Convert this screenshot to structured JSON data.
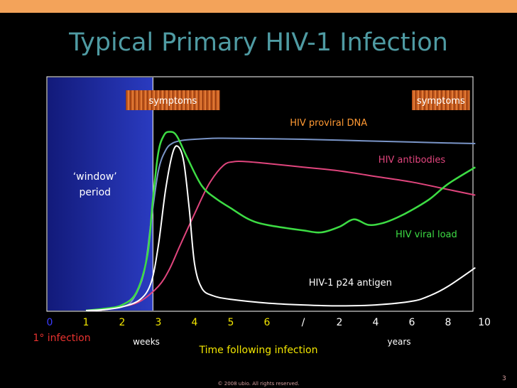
{
  "slide": {
    "title": "Typical Primary HIV-1 Infection",
    "copyright": "© 2008 ubio. All rights reserved.",
    "page_number": "3"
  },
  "chart_data": {
    "type": "line",
    "title": "Typical Primary HIV-1 Infection",
    "xlabel": "Time following infection",
    "x_unit_labels": {
      "weeks": "weeks",
      "years": "years"
    },
    "x_ticks": [
      "0",
      "1",
      "2",
      "3",
      "4",
      "5",
      "6",
      "/",
      "2",
      "4",
      "6",
      "8",
      "10"
    ],
    "x_tick_colors": [
      "#3b3bff",
      "#f2e600",
      "#f2e600",
      "#f2e600",
      "#f2e600",
      "#f2e600",
      "#f2e600",
      "#ffffff",
      "#ffffff",
      "#ffffff",
      "#ffffff",
      "#ffffff",
      "#ffffff"
    ],
    "xlim": [
      0,
      12
    ],
    "ylim": [
      0,
      1
    ],
    "infection_label": "1° infection",
    "window_label": [
      "‘window’",
      "period"
    ],
    "window_range": [
      0,
      2.85
    ],
    "symptom_bands": [
      {
        "label": "symptoms",
        "x_range": [
          2.1,
          4.7
        ]
      },
      {
        "label": "symptoms",
        "x_range": [
          10.0,
          11.6
        ]
      }
    ],
    "series": [
      {
        "name": "HIV proviral DNA",
        "color": "#7a95c8",
        "label_color": "#ff9933",
        "x": [
          1.0,
          1.5,
          2.0,
          2.3,
          2.6,
          2.8,
          3.0,
          3.2,
          3.4,
          3.7,
          4.0,
          4.5,
          5.0,
          6.0,
          7.0,
          8.0,
          9.0,
          10.0,
          11.0,
          11.75
        ],
        "y": [
          0.0,
          0.005,
          0.02,
          0.06,
          0.2,
          0.48,
          0.75,
          0.86,
          0.9,
          0.915,
          0.92,
          0.925,
          0.925,
          0.923,
          0.92,
          0.915,
          0.91,
          0.905,
          0.9,
          0.897
        ]
      },
      {
        "name": "HIV antibodies",
        "color": "#e0457d",
        "label_color": "#e0457d",
        "x": [
          1.0,
          1.5,
          2.0,
          2.5,
          3.0,
          3.3,
          3.6,
          4.0,
          4.4,
          4.8,
          5.1,
          5.4,
          6.0,
          7.0,
          8.0,
          9.0,
          10.0,
          11.0,
          11.75
        ],
        "y": [
          0.0,
          0.005,
          0.02,
          0.05,
          0.13,
          0.22,
          0.35,
          0.52,
          0.68,
          0.78,
          0.8,
          0.8,
          0.79,
          0.77,
          0.75,
          0.72,
          0.69,
          0.65,
          0.62
        ]
      },
      {
        "name": "HIV viral load",
        "color": "#3ddc44",
        "label_color": "#3ddc44",
        "x": [
          1.0,
          1.5,
          2.0,
          2.4,
          2.7,
          2.85,
          3.0,
          3.15,
          3.3,
          3.5,
          3.8,
          4.2,
          4.6,
          5.0,
          5.5,
          6.0,
          7.0,
          7.5,
          8.0,
          8.4,
          8.8,
          9.2,
          9.6,
          10.0,
          10.5,
          11.0,
          11.75
        ],
        "y": [
          0.0,
          0.01,
          0.03,
          0.1,
          0.3,
          0.6,
          0.85,
          0.94,
          0.96,
          0.94,
          0.82,
          0.67,
          0.6,
          0.55,
          0.49,
          0.46,
          0.43,
          0.42,
          0.45,
          0.49,
          0.46,
          0.47,
          0.5,
          0.54,
          0.6,
          0.68,
          0.77
        ]
      },
      {
        "name": "HIV-1 p24 antigen",
        "color": "#ffffff",
        "label_color": "#ffffff",
        "x": [
          1.0,
          1.5,
          2.0,
          2.5,
          2.8,
          3.0,
          3.2,
          3.4,
          3.55,
          3.7,
          3.85,
          4.0,
          4.2,
          4.5,
          5.0,
          6.0,
          7.0,
          8.0,
          9.0,
          10.0,
          10.5,
          11.0,
          11.75
        ],
        "y": [
          0.0,
          0.005,
          0.02,
          0.06,
          0.15,
          0.35,
          0.65,
          0.85,
          0.88,
          0.8,
          0.55,
          0.25,
          0.12,
          0.08,
          0.06,
          0.04,
          0.03,
          0.025,
          0.03,
          0.05,
          0.08,
          0.13,
          0.23
        ]
      }
    ]
  }
}
